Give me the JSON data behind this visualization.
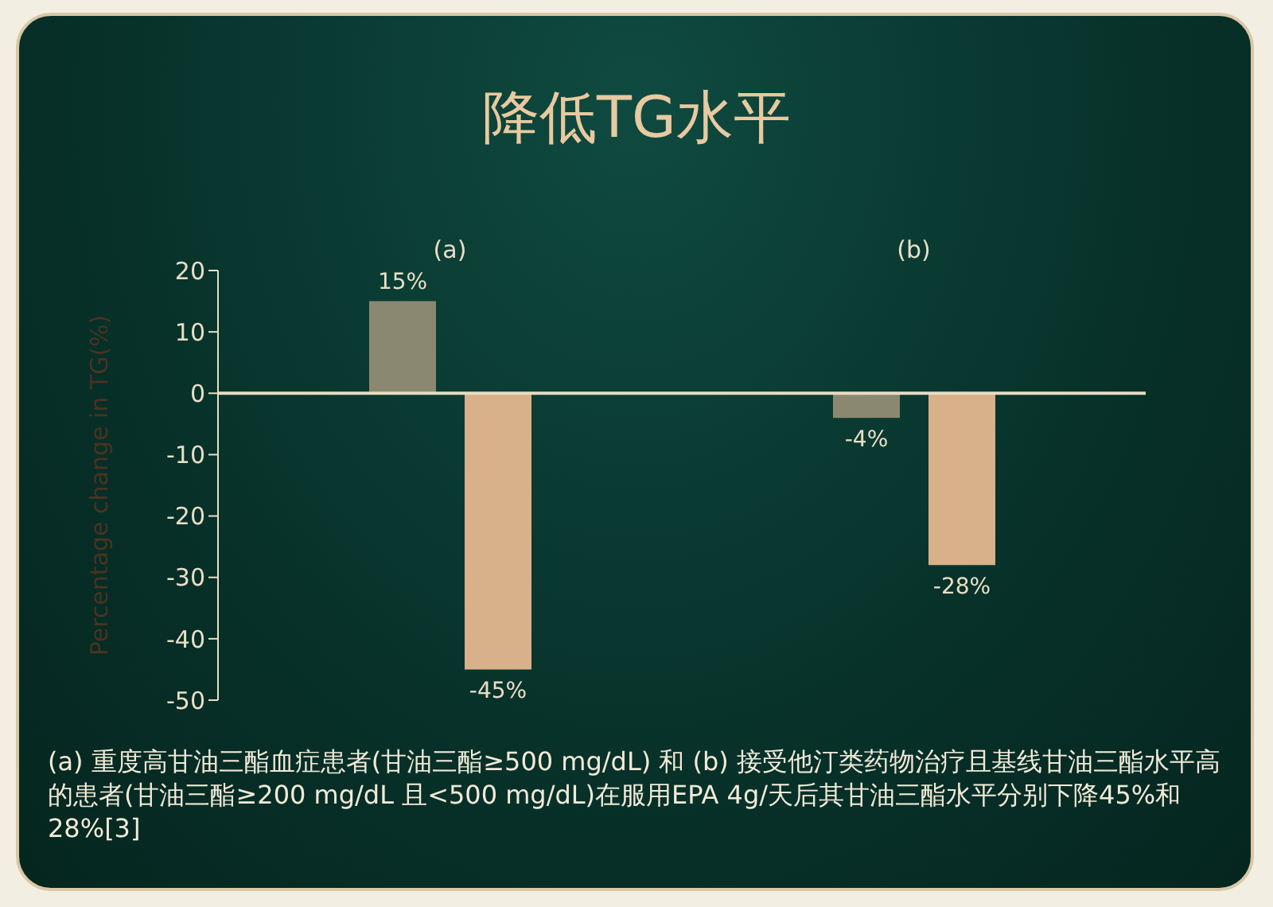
{
  "chart_data": {
    "type": "bar",
    "title": "降低TG水平",
    "ylabel": "Percentage change in TG(%)",
    "categories": [
      "(a)",
      "(b)"
    ],
    "series": [
      {
        "color": "#8b8872",
        "values": [
          15,
          -4
        ],
        "value_labels": [
          "15%",
          "-4%"
        ]
      },
      {
        "color": "#d8b08a",
        "values": [
          -45,
          -28
        ],
        "value_labels": [
          "-45%",
          "-28%"
        ]
      }
    ],
    "ylim": [
      -50,
      20
    ],
    "yticks": [
      -50,
      -40,
      -30,
      -20,
      -10,
      0,
      10,
      20
    ],
    "grid": false,
    "legend": false,
    "ref_lines": [
      {
        "axis": "y",
        "value": 0,
        "color": "#e6dcc4"
      }
    ],
    "annotations": [
      "(a) 重度高甘油三酯血症患者(甘油三酯≥500 mg/dL) 和 (b) 接受他汀类药物治疗且基线甘油三酯水平高的患者(甘油三酯≥200 mg/dL 且<500 mg/dL)在服用EPA 4g/天后其甘油三酯水平分别下降45%和28%[3]"
    ]
  }
}
